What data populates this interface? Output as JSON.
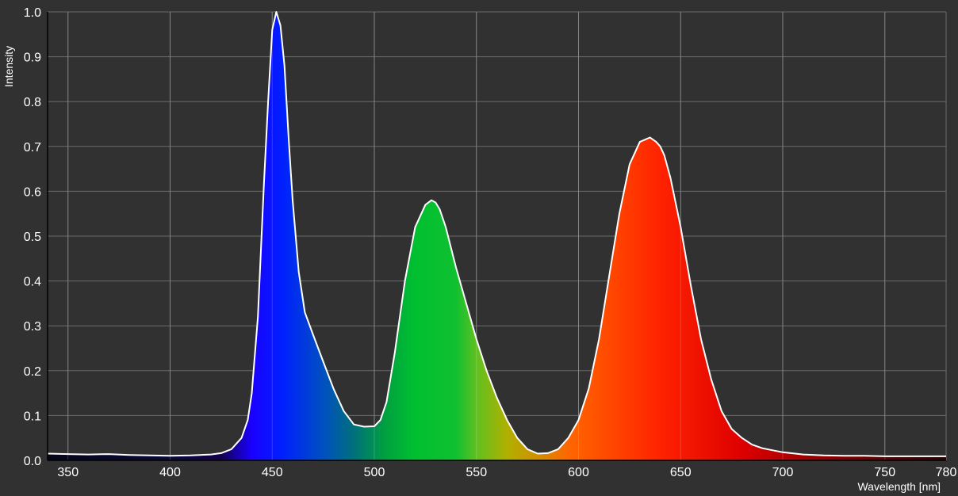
{
  "chart_data": {
    "type": "area",
    "title": "",
    "xlabel": "Wavelength [nm]",
    "ylabel": "Intensity",
    "xlim": [
      340,
      780
    ],
    "ylim": [
      0,
      1.0
    ],
    "grid": true,
    "x_ticks": [
      350,
      400,
      450,
      500,
      550,
      600,
      650,
      700,
      750,
      780
    ],
    "y_ticks": [
      0.0,
      0.1,
      0.2,
      0.3,
      0.4,
      0.5,
      0.6,
      0.7,
      0.8,
      0.9,
      1.0
    ],
    "x_tick_labels": [
      "350",
      "400",
      "450",
      "500",
      "550",
      "600",
      "650",
      "700",
      "750",
      "780"
    ],
    "y_tick_labels": [
      "0.0",
      "0.1",
      "0.2",
      "0.3",
      "0.4",
      "0.5",
      "0.6",
      "0.7",
      "0.8",
      "0.9",
      "1.0"
    ],
    "fill": "spectral wavelength colors",
    "line_color": "#ffffff",
    "background_color": "#313131",
    "grid_color": "#6b6b6b",
    "series": [
      {
        "x": [
          340,
          350,
          360,
          370,
          380,
          390,
          400,
          410,
          420,
          425,
          430,
          435,
          438,
          440,
          443,
          446,
          448,
          450,
          452,
          454,
          456,
          458,
          460,
          463,
          466,
          470,
          475,
          480,
          485,
          490,
          495,
          500,
          503,
          506,
          510,
          515,
          520,
          525,
          528,
          530,
          532,
          535,
          540,
          545,
          550,
          555,
          560,
          565,
          570,
          575,
          580,
          585,
          590,
          595,
          600,
          605,
          610,
          615,
          620,
          625,
          630,
          635,
          638,
          640,
          642,
          645,
          650,
          655,
          660,
          665,
          670,
          675,
          680,
          685,
          690,
          700,
          710,
          720,
          730,
          740,
          750,
          760,
          770,
          780
        ],
        "values": [
          0.015,
          0.014,
          0.013,
          0.014,
          0.012,
          0.011,
          0.01,
          0.011,
          0.013,
          0.016,
          0.025,
          0.05,
          0.09,
          0.15,
          0.32,
          0.62,
          0.8,
          0.96,
          1.0,
          0.97,
          0.88,
          0.72,
          0.58,
          0.42,
          0.33,
          0.28,
          0.22,
          0.16,
          0.11,
          0.08,
          0.075,
          0.076,
          0.09,
          0.13,
          0.24,
          0.4,
          0.52,
          0.57,
          0.58,
          0.575,
          0.56,
          0.52,
          0.43,
          0.35,
          0.27,
          0.2,
          0.14,
          0.09,
          0.05,
          0.025,
          0.015,
          0.016,
          0.025,
          0.05,
          0.09,
          0.16,
          0.27,
          0.41,
          0.55,
          0.66,
          0.71,
          0.72,
          0.71,
          0.7,
          0.68,
          0.63,
          0.52,
          0.39,
          0.27,
          0.18,
          0.11,
          0.07,
          0.05,
          0.035,
          0.027,
          0.018,
          0.013,
          0.011,
          0.01,
          0.01,
          0.009,
          0.009,
          0.009,
          0.009
        ]
      }
    ]
  }
}
